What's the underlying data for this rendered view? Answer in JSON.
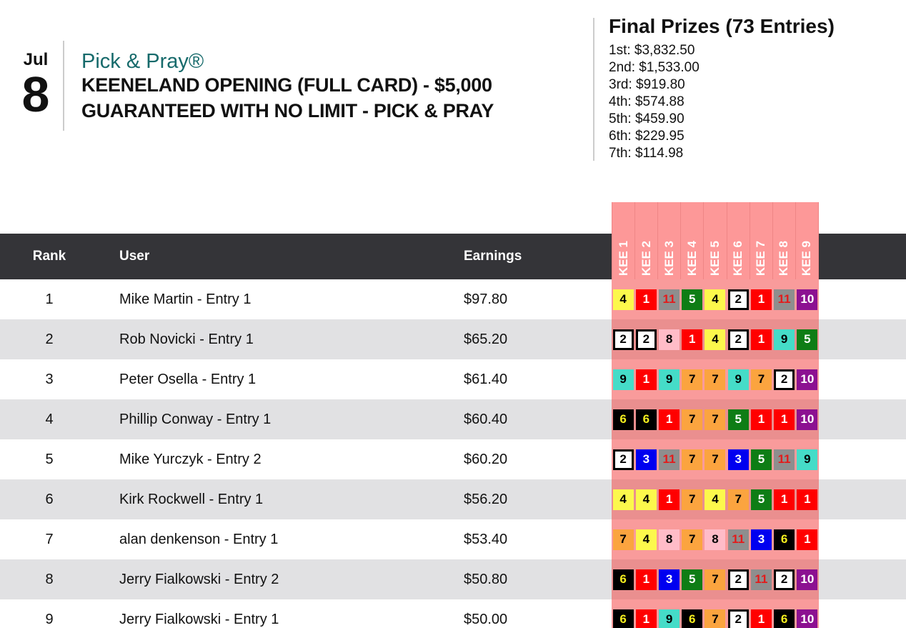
{
  "event": {
    "date_month": "Jul",
    "date_day": "8",
    "contest_type": "Pick & Pray®",
    "title_line1": "KEENELAND OPENING (FULL CARD) - $5,000",
    "title_line2": "GUARANTEED WITH NO LIMIT - PICK & PRAY"
  },
  "prizes": {
    "title": "Final Prizes (73 Entries)",
    "lines": [
      "1st: $3,832.50",
      "2nd: $1,533.00",
      "3rd: $919.80",
      "4th: $574.88",
      "5th: $459.90",
      "6th: $229.95",
      "7th: $114.98"
    ]
  },
  "leaderboard": {
    "columns": {
      "rank": "Rank",
      "user": "User",
      "earnings": "Earnings"
    },
    "race_columns": [
      "KEE 1",
      "KEE 2",
      "KEE 3",
      "KEE 4",
      "KEE 5",
      "KEE 6",
      "KEE 7",
      "KEE 8",
      "KEE 9"
    ],
    "rows": [
      {
        "rank": "1",
        "user": "Mike Martin - Entry 1",
        "earnings": "$97.80",
        "picks": [
          4,
          1,
          11,
          5,
          4,
          2,
          1,
          11,
          10
        ]
      },
      {
        "rank": "2",
        "user": "Rob Novicki - Entry 1",
        "earnings": "$65.20",
        "picks": [
          2,
          2,
          8,
          1,
          4,
          2,
          1,
          9,
          5
        ]
      },
      {
        "rank": "3",
        "user": "Peter Osella - Entry 1",
        "earnings": "$61.40",
        "picks": [
          9,
          1,
          9,
          7,
          7,
          9,
          7,
          2,
          10
        ]
      },
      {
        "rank": "4",
        "user": "Phillip Conway - Entry 1",
        "earnings": "$60.40",
        "picks": [
          6,
          6,
          1,
          7,
          7,
          5,
          1,
          1,
          10
        ]
      },
      {
        "rank": "5",
        "user": "Mike Yurczyk - Entry 2",
        "earnings": "$60.20",
        "picks": [
          2,
          3,
          11,
          7,
          7,
          3,
          5,
          11,
          9
        ]
      },
      {
        "rank": "6",
        "user": "Kirk Rockwell - Entry 1",
        "earnings": "$56.20",
        "picks": [
          4,
          4,
          1,
          7,
          4,
          7,
          5,
          1,
          1
        ]
      },
      {
        "rank": "7",
        "user": "alan denkenson - Entry 1",
        "earnings": "$53.40",
        "picks": [
          7,
          4,
          8,
          7,
          8,
          11,
          3,
          6,
          1
        ]
      },
      {
        "rank": "8",
        "user": "Jerry Fialkowski - Entry 2",
        "earnings": "$50.80",
        "picks": [
          6,
          1,
          3,
          5,
          7,
          2,
          11,
          2,
          10
        ]
      },
      {
        "rank": "9",
        "user": "Jerry Fialkowski - Entry 1",
        "earnings": "$50.00",
        "picks": [
          6,
          1,
          9,
          6,
          7,
          2,
          1,
          6,
          10
        ]
      }
    ]
  },
  "colors": {
    "accent_teal": "#166a6b",
    "divider_gray": "#cccccc",
    "header_bar": "#343438",
    "row_alt": "#e1e1e3",
    "race_header_pink": "#fd9898",
    "race_header_pink_border": "#ef8686",
    "race_cell_pink_odd": "#f99b9b",
    "race_cell_pink_even": "#ea8f8f",
    "saddlecloth": {
      "1": {
        "bg": "#ff0000",
        "fg": "#ffffff"
      },
      "2": {
        "bg": "#ffffff",
        "fg": "#000000",
        "border": "#000000"
      },
      "3": {
        "bg": "#0000f0",
        "fg": "#ffffff"
      },
      "4": {
        "bg": "#fcf84c",
        "fg": "#000000"
      },
      "5": {
        "bg": "#0e7d15",
        "fg": "#ffffff"
      },
      "6": {
        "bg": "#000000",
        "fg": "#f5ef1e"
      },
      "7": {
        "bg": "#fba43f",
        "fg": "#000000"
      },
      "8": {
        "bg": "#ffbcc8",
        "fg": "#000000"
      },
      "9": {
        "bg": "#45dcc8",
        "fg": "#000000"
      },
      "10": {
        "bg": "#8c1191",
        "fg": "#ffffff"
      },
      "11": {
        "bg": "#8e8e8e",
        "fg": "#e31b1b"
      }
    }
  }
}
